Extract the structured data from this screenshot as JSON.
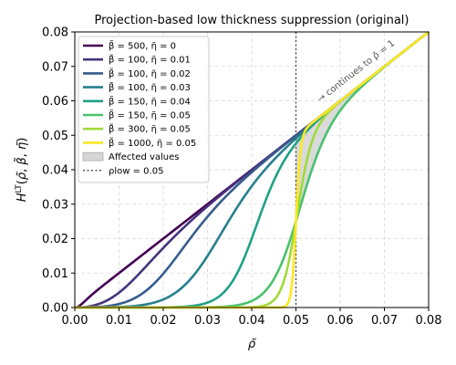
{
  "chart_data": {
    "type": "line",
    "title": "Projection-based low thickness suppression (original)",
    "xlabel": "ρ̃",
    "ylabel": "H^LT(ρ̃, β̃, η̃)",
    "xlim": [
      0.0,
      0.08
    ],
    "ylim": [
      0.0,
      0.08
    ],
    "x_ticks": [
      "0.00",
      "0.01",
      "0.02",
      "0.03",
      "0.04",
      "0.05",
      "0.06",
      "0.07",
      "0.08"
    ],
    "y_ticks": [
      "0.00",
      "0.01",
      "0.02",
      "0.03",
      "0.04",
      "0.05",
      "0.06",
      "0.07",
      "0.08"
    ],
    "grid": true,
    "legend_position": "upper-left",
    "rho_low": 0.05,
    "series": [
      {
        "name": "β̃ = 500, η̃ = 0",
        "beta": 500,
        "eta": 0,
        "color": "#440154"
      },
      {
        "name": "β̃ = 100, η̃ = 0.01",
        "beta": 100,
        "eta": 0.01,
        "color": "#46337e"
      },
      {
        "name": "β̃ = 100, η̃ = 0.02",
        "beta": 100,
        "eta": 0.02,
        "color": "#365c8d"
      },
      {
        "name": "β̃ = 100, η̃ = 0.03",
        "beta": 100,
        "eta": 0.03,
        "color": "#277f8e"
      },
      {
        "name": "β̃ = 150, η̃ = 0.04",
        "beta": 150,
        "eta": 0.04,
        "color": "#1fa187"
      },
      {
        "name": "β̃ = 150, η̃ = 0.05",
        "beta": 150,
        "eta": 0.05,
        "color": "#4ac16d"
      },
      {
        "name": "β̃ = 300, η̃ = 0.05",
        "beta": 300,
        "eta": 0.05,
        "color": "#a0da39"
      },
      {
        "name": "β̃ = 1000, η̃ = 0.05",
        "beta": 1000,
        "eta": 0.05,
        "color": "#fde725"
      }
    ],
    "legend_extra": [
      {
        "name": "Affected values",
        "kind": "patch",
        "color": "#bbbbbb"
      },
      {
        "name": "ρlow = 0.05",
        "kind": "dotted-line",
        "color": "#555555"
      }
    ],
    "annotation": "→ continues to ρ̃ = 1"
  }
}
